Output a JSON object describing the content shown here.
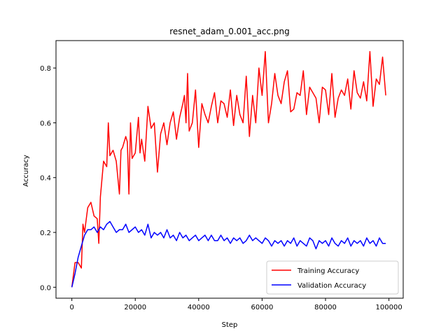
{
  "chart_data": {
    "type": "line",
    "title": "resnet_adam_0.001_acc.png",
    "xlabel": "Step",
    "ylabel": "Accuracy",
    "xlim": [
      -5000,
      104500
    ],
    "ylim": [
      -0.04,
      0.9
    ],
    "xticks": [
      0,
      20000,
      40000,
      60000,
      80000,
      100000
    ],
    "yticks": [
      0.0,
      0.2,
      0.4,
      0.6,
      0.8
    ],
    "xtick_labels": [
      "0",
      "20000",
      "40000",
      "60000",
      "80000",
      "100000"
    ],
    "ytick_labels": [
      "0.0",
      "0.2",
      "0.4",
      "0.6",
      "0.8"
    ],
    "legend_position": "lower-right",
    "grid": false,
    "series": [
      {
        "name": "Training Accuracy",
        "color": "#ff0000",
        "x": [
          0,
          1000,
          2000,
          3000,
          3500,
          4000,
          5000,
          6000,
          7000,
          8000,
          8500,
          9000,
          10000,
          11000,
          11500,
          12000,
          13000,
          14000,
          15000,
          15500,
          16000,
          17000,
          17500,
          18000,
          18500,
          19000,
          20000,
          21000,
          21500,
          22000,
          23000,
          24000,
          25000,
          26000,
          27000,
          28000,
          29000,
          30000,
          31000,
          32000,
          33000,
          34000,
          35000,
          35500,
          36000,
          36500,
          37000,
          38000,
          39000,
          40000,
          41000,
          42000,
          43000,
          44000,
          45000,
          46000,
          47000,
          48000,
          49000,
          50000,
          51000,
          52000,
          53000,
          54000,
          55000,
          56000,
          57000,
          58000,
          59000,
          60000,
          61000,
          62000,
          63000,
          64000,
          65000,
          66000,
          67000,
          68000,
          69000,
          70000,
          71000,
          72000,
          73000,
          74000,
          75000,
          76000,
          77000,
          78000,
          79000,
          80000,
          81000,
          82000,
          83000,
          84000,
          85000,
          86000,
          87000,
          88000,
          89000,
          90000,
          91000,
          92000,
          93000,
          94000,
          95000,
          96000,
          97000,
          98000,
          99000
        ],
        "values": [
          0.0,
          0.09,
          0.09,
          0.07,
          0.23,
          0.2,
          0.29,
          0.31,
          0.26,
          0.25,
          0.16,
          0.33,
          0.46,
          0.44,
          0.6,
          0.48,
          0.5,
          0.46,
          0.34,
          0.5,
          0.51,
          0.55,
          0.53,
          0.34,
          0.6,
          0.47,
          0.49,
          0.62,
          0.49,
          0.54,
          0.46,
          0.66,
          0.58,
          0.6,
          0.42,
          0.56,
          0.6,
          0.52,
          0.6,
          0.64,
          0.54,
          0.62,
          0.67,
          0.7,
          0.6,
          0.78,
          0.57,
          0.6,
          0.72,
          0.51,
          0.67,
          0.63,
          0.6,
          0.66,
          0.71,
          0.6,
          0.68,
          0.67,
          0.62,
          0.72,
          0.59,
          0.7,
          0.63,
          0.6,
          0.77,
          0.55,
          0.7,
          0.6,
          0.8,
          0.7,
          0.86,
          0.6,
          0.67,
          0.78,
          0.7,
          0.67,
          0.75,
          0.79,
          0.64,
          0.65,
          0.71,
          0.7,
          0.79,
          0.63,
          0.73,
          0.71,
          0.69,
          0.6,
          0.73,
          0.72,
          0.63,
          0.78,
          0.62,
          0.69,
          0.72,
          0.7,
          0.76,
          0.65,
          0.79,
          0.71,
          0.69,
          0.75,
          0.68,
          0.86,
          0.66,
          0.76,
          0.74,
          0.84,
          0.7
        ],
        "x_fill": "computed"
      },
      {
        "name": "Validation Accuracy",
        "color": "#0000ff",
        "x": [
          0,
          1000,
          2000,
          3000,
          4000,
          5000,
          6000,
          7000,
          8000,
          9000,
          10000,
          11000,
          12000,
          13000,
          14000,
          15000,
          16000,
          17000,
          18000,
          19000,
          20000,
          21000,
          22000,
          23000,
          24000,
          25000,
          26000,
          27000,
          28000,
          29000,
          30000,
          31000,
          32000,
          33000,
          34000,
          35000,
          36000,
          37000,
          38000,
          39000,
          40000,
          41000,
          42000,
          43000,
          44000,
          45000,
          46000,
          47000,
          48000,
          49000,
          50000,
          51000,
          52000,
          53000,
          54000,
          55000,
          56000,
          57000,
          58000,
          59000,
          60000,
          61000,
          62000,
          63000,
          64000,
          65000,
          66000,
          67000,
          68000,
          69000,
          70000,
          71000,
          72000,
          73000,
          74000,
          75000,
          76000,
          77000,
          78000,
          79000,
          80000,
          81000,
          82000,
          83000,
          84000,
          85000,
          86000,
          87000,
          88000,
          89000,
          90000,
          91000,
          92000,
          93000,
          94000,
          95000,
          96000,
          97000,
          98000,
          99000
        ],
        "values": [
          0.0,
          0.05,
          0.11,
          0.15,
          0.19,
          0.21,
          0.21,
          0.22,
          0.2,
          0.22,
          0.21,
          0.23,
          0.24,
          0.22,
          0.2,
          0.21,
          0.21,
          0.23,
          0.2,
          0.21,
          0.22,
          0.2,
          0.21,
          0.19,
          0.23,
          0.18,
          0.2,
          0.19,
          0.2,
          0.18,
          0.21,
          0.18,
          0.19,
          0.17,
          0.2,
          0.18,
          0.19,
          0.17,
          0.18,
          0.19,
          0.17,
          0.18,
          0.19,
          0.17,
          0.19,
          0.17,
          0.17,
          0.19,
          0.17,
          0.18,
          0.16,
          0.18,
          0.17,
          0.18,
          0.16,
          0.17,
          0.19,
          0.17,
          0.18,
          0.17,
          0.16,
          0.18,
          0.17,
          0.15,
          0.17,
          0.16,
          0.17,
          0.15,
          0.17,
          0.16,
          0.18,
          0.15,
          0.17,
          0.16,
          0.15,
          0.18,
          0.17,
          0.14,
          0.17,
          0.16,
          0.17,
          0.15,
          0.18,
          0.16,
          0.15,
          0.17,
          0.16,
          0.18,
          0.15,
          0.17,
          0.16,
          0.17,
          0.15,
          0.18,
          0.16,
          0.17,
          0.15,
          0.18,
          0.16,
          0.16
        ]
      }
    ]
  }
}
